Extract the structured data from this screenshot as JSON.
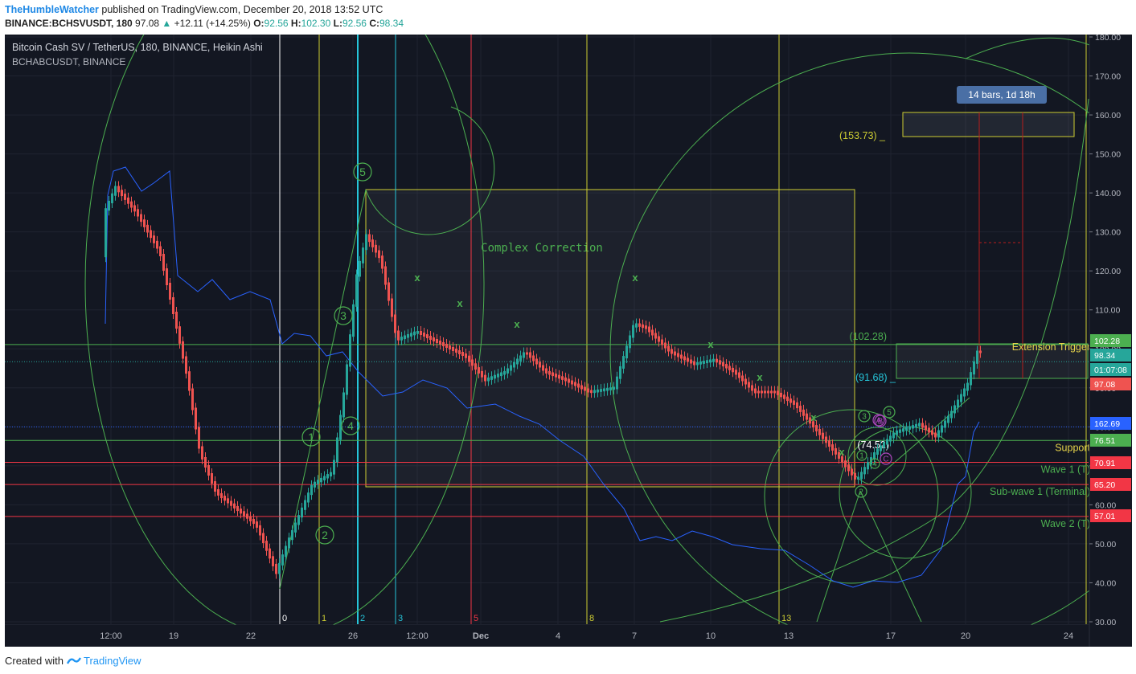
{
  "header": {
    "author": "TheHumbleWatcher",
    "published": " published on TradingView.com, December 20, 2018 13:52 UTC",
    "symbol_line": "BINANCE:BCHSVUSDT, 180",
    "last": "97.08",
    "change": "+12.11 (+14.25%)",
    "o_label": "O:",
    "o": "92.56",
    "h_label": "H:",
    "h": "102.30",
    "l_label": "L:",
    "l": "92.56",
    "c_label": "C:",
    "c": "98.34"
  },
  "legend": {
    "title": "Bitcoin Cash SV / TetherUS, 180, BINANCE, Heikin Ashi",
    "subtitle": "BCHABCUSDT, BINANCE"
  },
  "footer": {
    "created": "Created with",
    "brand": "TradingView"
  },
  "chart_data": {
    "type": "candlestick",
    "title": "Bitcoin Cash SV / TetherUS, 180, BINANCE, Heikin Ashi",
    "y_axis": {
      "range": [
        30,
        180
      ],
      "ticks": [
        30,
        40,
        50,
        60,
        70,
        80,
        90,
        100,
        110,
        120,
        130,
        140,
        150,
        160,
        170,
        180
      ]
    },
    "x_ticks": [
      "12:00",
      "19",
      "22",
      "26",
      "12:00",
      "Dec",
      "4",
      "7",
      "10",
      "13",
      "17",
      "20",
      "24"
    ],
    "price_labels": [
      {
        "value": "102.28",
        "color": "#4caf50"
      },
      {
        "value": "98.34",
        "color": "#26a69a"
      },
      {
        "value": "01:07:08",
        "color": "#26a69a"
      },
      {
        "value": "97.08",
        "color": "#ef5350"
      },
      {
        "value": "162.69",
        "color": "#2962ff"
      },
      {
        "value": "76.51",
        "color": "#4caf50"
      },
      {
        "value": "70.91",
        "color": "#f23645"
      },
      {
        "value": "65.20",
        "color": "#f23645"
      },
      {
        "value": "57.01",
        "color": "#f23645"
      }
    ],
    "horizontal_levels": [
      {
        "price": 101.1,
        "color": "#4caf50",
        "label": "Extension Trigger"
      },
      {
        "price": 76.51,
        "color": "#4caf50",
        "label": "Support"
      },
      {
        "price": 70.91,
        "color": "#f23645",
        "label": "Wave 1 (T)"
      },
      {
        "price": 65.2,
        "color": "#f23645",
        "label": "Sub-wave 1 (Terminal)"
      },
      {
        "price": 57.01,
        "color": "#f23645",
        "label": "Wave 2 (T)"
      }
    ],
    "annotations": {
      "box_title": "Complex Correction",
      "ratios": [
        "(153.73)",
        "(102.28)",
        "(91.68)",
        "(74.52)"
      ],
      "measure": "14 bars, 1d 18h",
      "waves": [
        "1",
        "2",
        "3",
        "4",
        "5"
      ],
      "sub_waves": [
        "1",
        "2",
        "3",
        "4",
        "5"
      ],
      "abc": [
        "A",
        "B",
        "C"
      ],
      "fib_time": [
        "0",
        "1",
        "2",
        "3",
        "5",
        "8",
        "13",
        "2"
      ]
    },
    "colors": {
      "up": "#26a69a",
      "down": "#ef5350",
      "overlay": "#2962ff",
      "fib": "#4caf50",
      "box": "#cdcd33",
      "background": "#131722"
    }
  }
}
